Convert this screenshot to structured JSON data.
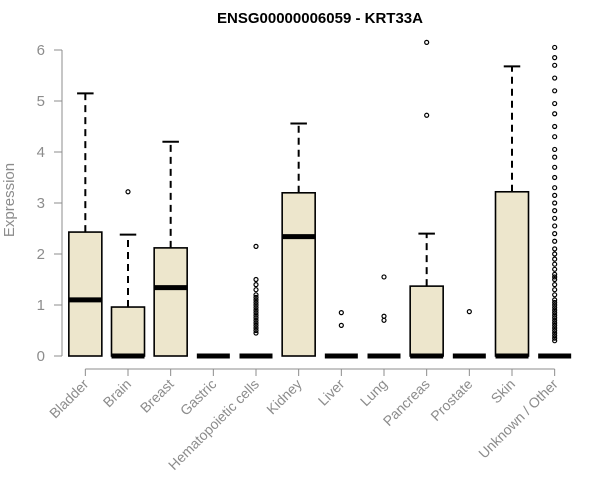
{
  "chart_data": {
    "type": "boxplot",
    "title": "ENSG00000006059 - KRT33A",
    "xlabel": "",
    "ylabel": "Expression",
    "ylim": [
      0,
      6.2
    ],
    "yticks": [
      0,
      1,
      2,
      3,
      4,
      5,
      6
    ],
    "grid": false,
    "colors": {
      "box_fill": "#ede6cc",
      "stroke": "#000000",
      "axis_text": "#8c8c8c"
    },
    "categories": [
      "Bladder",
      "Brain",
      "Breast",
      "Gastric",
      "Hematopoietic cells",
      "Kidney",
      "Liver",
      "Lung",
      "Pancreas",
      "Prostate",
      "Skin",
      "Unknown / Other"
    ],
    "boxes": [
      {
        "category": "Bladder",
        "q1": 0.0,
        "median": 1.1,
        "q3": 2.43,
        "whisker_low": 0.0,
        "whisker_high": 5.15,
        "outliers": []
      },
      {
        "category": "Brain",
        "q1": 0.0,
        "median": 0.0,
        "q3": 0.96,
        "whisker_low": 0.0,
        "whisker_high": 2.38,
        "outliers": [
          3.22
        ]
      },
      {
        "category": "Breast",
        "q1": 0.0,
        "median": 1.34,
        "q3": 2.12,
        "whisker_low": 0.0,
        "whisker_high": 4.2,
        "outliers": []
      },
      {
        "category": "Gastric",
        "q1": 0.0,
        "median": 0.0,
        "q3": 0.0,
        "whisker_low": 0.0,
        "whisker_high": 0.0,
        "outliers": []
      },
      {
        "category": "Hematopoietic cells",
        "q1": 0.0,
        "median": 0.0,
        "q3": 0.0,
        "whisker_low": 0.0,
        "whisker_high": 0.0,
        "outliers": [
          0.45,
          0.5,
          0.55,
          0.6,
          0.65,
          0.7,
          0.75,
          0.8,
          0.85,
          0.9,
          0.95,
          1.0,
          1.05,
          1.1,
          1.15,
          1.2,
          1.3,
          1.4,
          1.5,
          2.15
        ]
      },
      {
        "category": "Kidney",
        "q1": 0.0,
        "median": 2.34,
        "q3": 3.2,
        "whisker_low": 0.0,
        "whisker_high": 4.56,
        "outliers": []
      },
      {
        "category": "Liver",
        "q1": 0.0,
        "median": 0.0,
        "q3": 0.0,
        "whisker_low": 0.0,
        "whisker_high": 0.0,
        "outliers": [
          0.6,
          0.85
        ]
      },
      {
        "category": "Lung",
        "q1": 0.0,
        "median": 0.0,
        "q3": 0.0,
        "whisker_low": 0.0,
        "whisker_high": 0.0,
        "outliers": [
          0.7,
          0.78,
          1.55
        ]
      },
      {
        "category": "Pancreas",
        "q1": 0.0,
        "median": 0.0,
        "q3": 1.37,
        "whisker_low": 0.0,
        "whisker_high": 2.4,
        "outliers": [
          4.72,
          6.15
        ]
      },
      {
        "category": "Prostate",
        "q1": 0.0,
        "median": 0.0,
        "q3": 0.0,
        "whisker_low": 0.0,
        "whisker_high": 0.0,
        "outliers": [
          0.87
        ]
      },
      {
        "category": "Skin",
        "q1": 0.0,
        "median": 0.0,
        "q3": 3.22,
        "whisker_low": 0.0,
        "whisker_high": 5.68,
        "outliers": []
      },
      {
        "category": "Unknown / Other",
        "q1": 0.0,
        "median": 0.0,
        "q3": 0.0,
        "whisker_low": 0.0,
        "whisker_high": 0.0,
        "outliers": [
          0.3,
          0.35,
          0.4,
          0.45,
          0.5,
          0.55,
          0.6,
          0.65,
          0.7,
          0.75,
          0.8,
          0.85,
          0.9,
          0.95,
          1.0,
          1.05,
          1.1,
          1.2,
          1.3,
          1.4,
          1.5,
          1.55,
          1.6,
          1.7,
          1.8,
          1.9,
          2.0,
          2.1,
          2.25,
          2.4,
          2.55,
          2.7,
          2.85,
          3.0,
          3.15,
          3.3,
          3.5,
          3.7,
          3.9,
          4.05,
          4.3,
          4.5,
          4.75,
          4.95,
          5.2,
          5.45,
          5.7,
          5.85,
          6.05
        ]
      }
    ]
  }
}
